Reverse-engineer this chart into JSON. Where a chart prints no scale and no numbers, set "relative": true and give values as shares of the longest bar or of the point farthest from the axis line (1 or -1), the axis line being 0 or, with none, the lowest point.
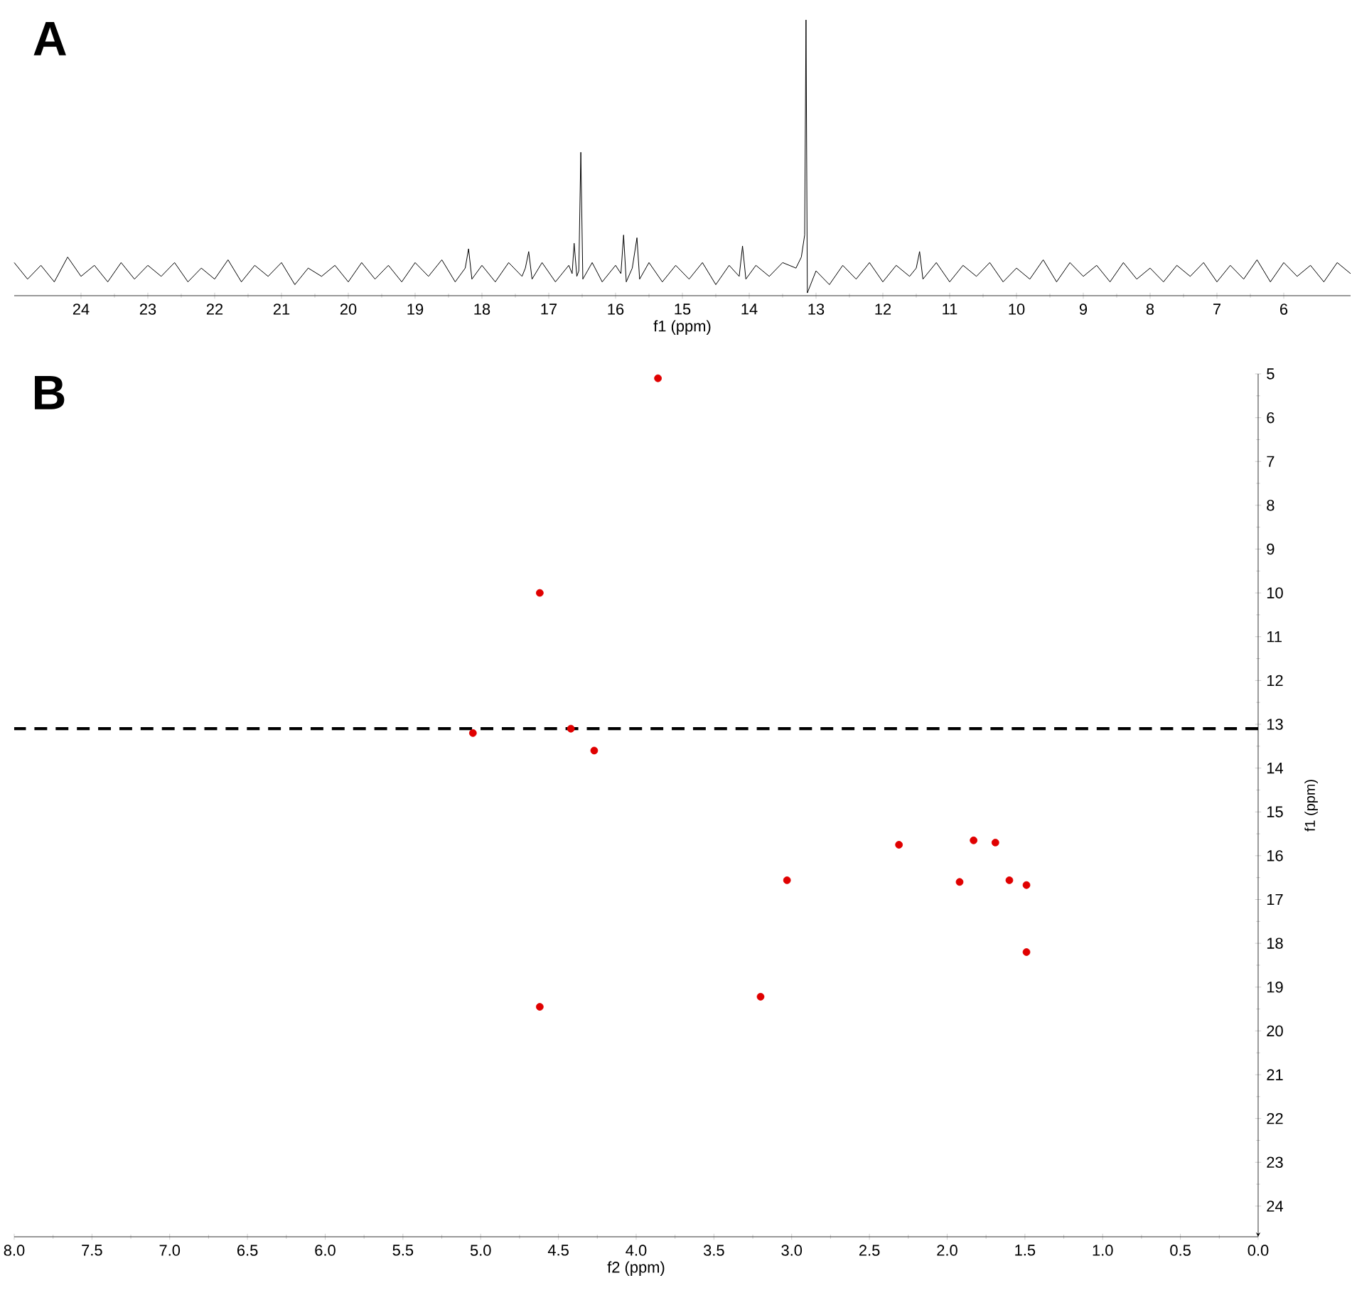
{
  "chart_data": [
    {
      "type": "line",
      "title": "A",
      "xlabel": "f1 (ppm)",
      "relative": true,
      "xlim": [
        25,
        5
      ],
      "xticks": [
        24,
        23,
        22,
        21,
        20,
        19,
        18,
        17,
        16,
        15,
        14,
        13,
        12,
        11,
        10,
        9,
        8,
        7,
        6
      ],
      "series": [
        {
          "color": "#000000",
          "x": [
            25.0,
            24.8,
            24.6,
            24.4,
            24.2,
            24.0,
            23.8,
            23.6,
            23.4,
            23.2,
            23.0,
            22.8,
            22.6,
            22.4,
            22.2,
            22.0,
            21.8,
            21.6,
            21.4,
            21.2,
            21.0,
            20.8,
            20.6,
            20.4,
            20.2,
            20.0,
            19.8,
            19.6,
            19.4,
            19.2,
            19.0,
            18.8,
            18.6,
            18.4,
            18.25,
            18.2,
            18.15,
            18.0,
            17.8,
            17.6,
            17.4,
            17.35,
            17.3,
            17.25,
            17.1,
            16.9,
            16.7,
            16.65,
            16.62,
            16.58,
            16.55,
            16.52,
            16.49,
            16.35,
            16.2,
            16.0,
            15.92,
            15.88,
            15.84,
            15.75,
            15.68,
            15.64,
            15.5,
            15.3,
            15.1,
            14.9,
            14.7,
            14.5,
            14.3,
            14.15,
            14.1,
            14.05,
            13.9,
            13.7,
            13.5,
            13.3,
            13.22,
            13.17,
            13.15,
            13.13,
            13.0,
            12.8,
            12.6,
            12.4,
            12.2,
            12.0,
            11.8,
            11.6,
            11.5,
            11.45,
            11.4,
            11.2,
            11.0,
            10.8,
            10.6,
            10.4,
            10.2,
            10.0,
            9.8,
            9.6,
            9.4,
            9.2,
            9.0,
            8.8,
            8.6,
            8.4,
            8.2,
            8.0,
            7.8,
            7.6,
            7.4,
            7.2,
            7.0,
            6.8,
            6.6,
            6.4,
            6.2,
            6.0,
            5.8,
            5.6,
            5.4,
            5.2,
            5.0
          ],
          "values": [
            0.12,
            0.06,
            0.11,
            0.05,
            0.14,
            0.07,
            0.11,
            0.05,
            0.12,
            0.06,
            0.11,
            0.07,
            0.12,
            0.05,
            0.1,
            0.06,
            0.13,
            0.05,
            0.11,
            0.07,
            0.12,
            0.04,
            0.1,
            0.07,
            0.11,
            0.05,
            0.12,
            0.06,
            0.11,
            0.05,
            0.12,
            0.07,
            0.13,
            0.05,
            0.1,
            0.17,
            0.06,
            0.11,
            0.05,
            0.12,
            0.07,
            0.1,
            0.16,
            0.06,
            0.12,
            0.05,
            0.11,
            0.08,
            0.19,
            0.07,
            0.09,
            0.52,
            0.06,
            0.12,
            0.05,
            0.11,
            0.08,
            0.22,
            0.05,
            0.1,
            0.21,
            0.06,
            0.12,
            0.05,
            0.11,
            0.06,
            0.12,
            0.04,
            0.11,
            0.07,
            0.18,
            0.06,
            0.11,
            0.07,
            0.12,
            0.1,
            0.14,
            0.22,
            1.0,
            0.01,
            0.09,
            0.04,
            0.11,
            0.06,
            0.12,
            0.05,
            0.11,
            0.07,
            0.1,
            0.16,
            0.06,
            0.12,
            0.05,
            0.11,
            0.07,
            0.12,
            0.05,
            0.1,
            0.06,
            0.13,
            0.05,
            0.12,
            0.07,
            0.11,
            0.05,
            0.12,
            0.06,
            0.1,
            0.05,
            0.11,
            0.07,
            0.12,
            0.05,
            0.11,
            0.06,
            0.13,
            0.05,
            0.12,
            0.07,
            0.11,
            0.05,
            0.12,
            0.08
          ]
        }
      ]
    },
    {
      "type": "scatter",
      "title": "B",
      "xlabel": "f2 (ppm)",
      "ylabel": "f1 (ppm)",
      "marker": "circle",
      "xlim": [
        8,
        0
      ],
      "ylim": [
        24.7,
        5
      ],
      "xticks": [
        {
          "value": 8,
          "label": "8.0"
        },
        7.5,
        {
          "value": 7,
          "label": "7.0"
        },
        6.5,
        {
          "value": 6,
          "label": "6.0"
        },
        5.5,
        {
          "value": 5,
          "label": "5.0"
        },
        4.5,
        {
          "value": 4,
          "label": "4.0"
        },
        3.5,
        {
          "value": 3,
          "label": "3.0"
        },
        2.5,
        {
          "value": 2,
          "label": "2.0"
        },
        1.5,
        {
          "value": 1,
          "label": "1.0"
        },
        0.5,
        {
          "value": 0,
          "label": "0.0"
        }
      ],
      "yticks": [
        5,
        6,
        7,
        8,
        9,
        10,
        11,
        12,
        13,
        14,
        15,
        16,
        17,
        18,
        19,
        20,
        21,
        22,
        23,
        24
      ],
      "ref_lines": [
        {
          "axis": "y",
          "value": 13.1,
          "color": "#000000",
          "line_style": "dashed"
        }
      ],
      "series": [
        {
          "color": "#e00000",
          "x": [
            3.86,
            4.62,
            5.05,
            4.42,
            4.27,
            3.03,
            2.31,
            1.83,
            1.92,
            1.69,
            1.6,
            1.49,
            1.49,
            3.2,
            4.62
          ],
          "values": [
            5.1,
            10.0,
            13.2,
            13.1,
            13.6,
            16.56,
            15.75,
            15.65,
            16.6,
            15.7,
            16.56,
            16.67,
            18.2,
            19.22,
            19.45
          ]
        }
      ]
    }
  ]
}
